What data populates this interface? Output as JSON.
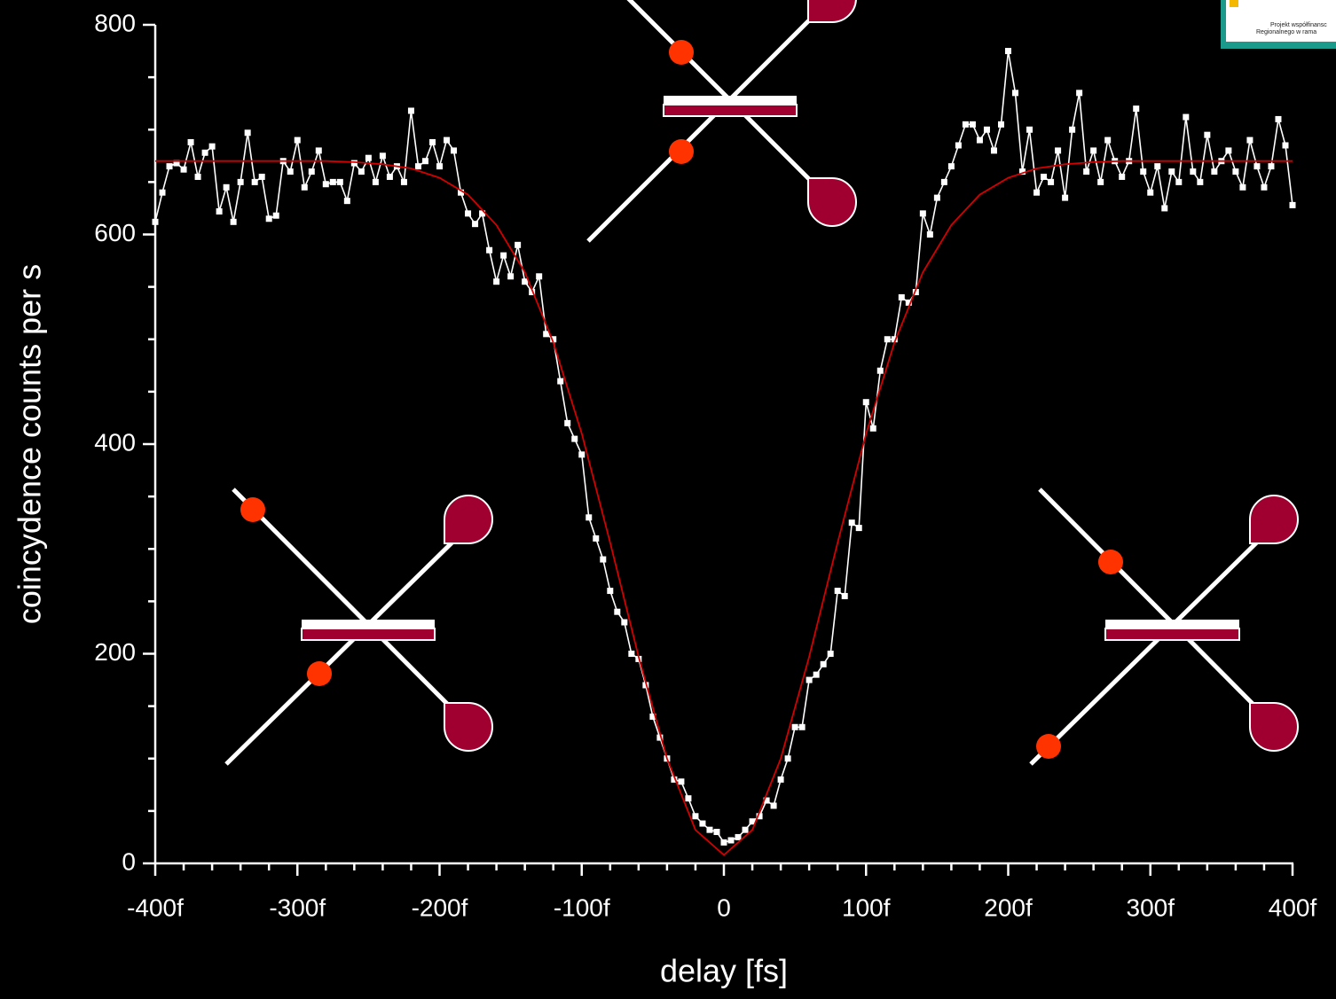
{
  "chart_data": {
    "type": "line",
    "x_label": "delay [fs]",
    "y_label": "coincydence counts per s",
    "xlim": [
      -400,
      400
    ],
    "ylim": [
      0,
      800
    ],
    "xticks": [
      {
        "value": -400,
        "label": "-400f"
      },
      {
        "value": -300,
        "label": "-300f"
      },
      {
        "value": -200,
        "label": "-200f"
      },
      {
        "value": -100,
        "label": "-100f"
      },
      0,
      {
        "value": 100,
        "label": "100f"
      },
      {
        "value": 200,
        "label": "200f"
      },
      {
        "value": 300,
        "label": "300f"
      },
      {
        "value": 400,
        "label": "400f"
      }
    ],
    "yticks": [
      0,
      200,
      400,
      600,
      800
    ],
    "xminorticks": [
      -380,
      -360,
      -340,
      -320,
      -280,
      -260,
      -240,
      -220,
      -180,
      -160,
      -140,
      -120,
      -80,
      -60,
      -40,
      -20,
      20,
      40,
      60,
      80,
      120,
      140,
      160,
      180,
      220,
      240,
      260,
      280,
      320,
      340,
      360,
      380
    ],
    "yminorticks": [
      50,
      100,
      150,
      250,
      300,
      350,
      450,
      500,
      550,
      650,
      700,
      750
    ],
    "series": [
      {
        "color": "#ffffff",
        "markers": true,
        "x": [
          -400,
          -395,
          -390,
          -385,
          -380,
          -375,
          -370,
          -365,
          -360,
          -355,
          -350,
          -345,
          -340,
          -335,
          -330,
          -325,
          -320,
          -315,
          -310,
          -305,
          -300,
          -295,
          -290,
          -285,
          -280,
          -275,
          -270,
          -265,
          -260,
          -255,
          -250,
          -245,
          -240,
          -235,
          -230,
          -225,
          -220,
          -215,
          -210,
          -205,
          -200,
          -195,
          -190,
          -185,
          -180,
          -175,
          -170,
          -165,
          -160,
          -155,
          -150,
          -145,
          -140,
          -135,
          -130,
          -125,
          -120,
          -115,
          -110,
          -105,
          -100,
          -95,
          -90,
          -85,
          -80,
          -75,
          -70,
          -65,
          -60,
          -55,
          -50,
          -45,
          -40,
          -35,
          -30,
          -25,
          -20,
          -15,
          -10,
          -5,
          0,
          5,
          10,
          15,
          20,
          25,
          30,
          35,
          40,
          45,
          50,
          55,
          60,
          65,
          70,
          75,
          80,
          85,
          90,
          95,
          100,
          105,
          110,
          115,
          120,
          125,
          130,
          135,
          140,
          145,
          150,
          155,
          160,
          165,
          170,
          175,
          180,
          185,
          190,
          195,
          200,
          205,
          210,
          215,
          220,
          225,
          230,
          235,
          240,
          245,
          250,
          255,
          260,
          265,
          270,
          275,
          280,
          285,
          290,
          295,
          300,
          305,
          310,
          315,
          320,
          325,
          330,
          335,
          340,
          345,
          350,
          355,
          360,
          365,
          370,
          375,
          380,
          385,
          390,
          395,
          400
        ],
        "values": [
          612,
          640,
          665,
          668,
          662,
          688,
          655,
          678,
          684,
          622,
          645,
          612,
          650,
          697,
          650,
          655,
          615,
          618,
          670,
          660,
          690,
          645,
          660,
          680,
          648,
          650,
          650,
          632,
          668,
          660,
          673,
          650,
          675,
          655,
          665,
          650,
          718,
          665,
          670,
          688,
          665,
          690,
          680,
          640,
          620,
          610,
          620,
          585,
          555,
          580,
          560,
          590,
          555,
          545,
          560,
          505,
          500,
          460,
          420,
          405,
          390,
          330,
          310,
          290,
          260,
          240,
          230,
          200,
          195,
          170,
          140,
          120,
          100,
          80,
          78,
          62,
          45,
          38,
          32,
          30,
          20,
          22,
          25,
          32,
          40,
          45,
          60,
          55,
          80,
          100,
          130,
          130,
          175,
          180,
          190,
          200,
          260,
          255,
          325,
          320,
          440,
          415,
          470,
          500,
          500,
          540,
          535,
          545,
          620,
          600,
          635,
          650,
          665,
          685,
          705,
          705,
          690,
          700,
          680,
          705,
          775,
          735,
          660,
          700,
          640,
          655,
          650,
          680,
          635,
          700,
          735,
          660,
          680,
          650,
          690,
          670,
          655,
          670,
          720,
          660,
          640,
          665,
          625,
          660,
          650,
          712,
          660,
          650,
          695,
          660,
          670,
          680,
          660,
          645,
          690,
          665,
          645,
          665,
          710,
          685,
          628
        ]
      },
      {
        "color": "#d40000",
        "markers": false,
        "x": [
          -400,
          -380,
          -360,
          -340,
          -320,
          -300,
          -280,
          -260,
          -240,
          -220,
          -200,
          -180,
          -160,
          -140,
          -120,
          -100,
          -80,
          -60,
          -40,
          -20,
          0,
          20,
          40,
          60,
          80,
          100,
          120,
          140,
          160,
          180,
          200,
          220,
          240,
          260,
          280,
          300,
          320,
          340,
          360,
          380,
          400
        ],
        "values": [
          670,
          670,
          670,
          670,
          670,
          670,
          670,
          669,
          667,
          663,
          654,
          638,
          609,
          564,
          497,
          410,
          306,
          197,
          100,
          32,
          8,
          32,
          100,
          197,
          306,
          410,
          497,
          564,
          609,
          638,
          654,
          663,
          667,
          669,
          670,
          670,
          670,
          670,
          670,
          670,
          670
        ]
      }
    ]
  },
  "logo": {
    "lines": [
      "Projekt współfinansc",
      "Regionalnego w rama"
    ]
  }
}
